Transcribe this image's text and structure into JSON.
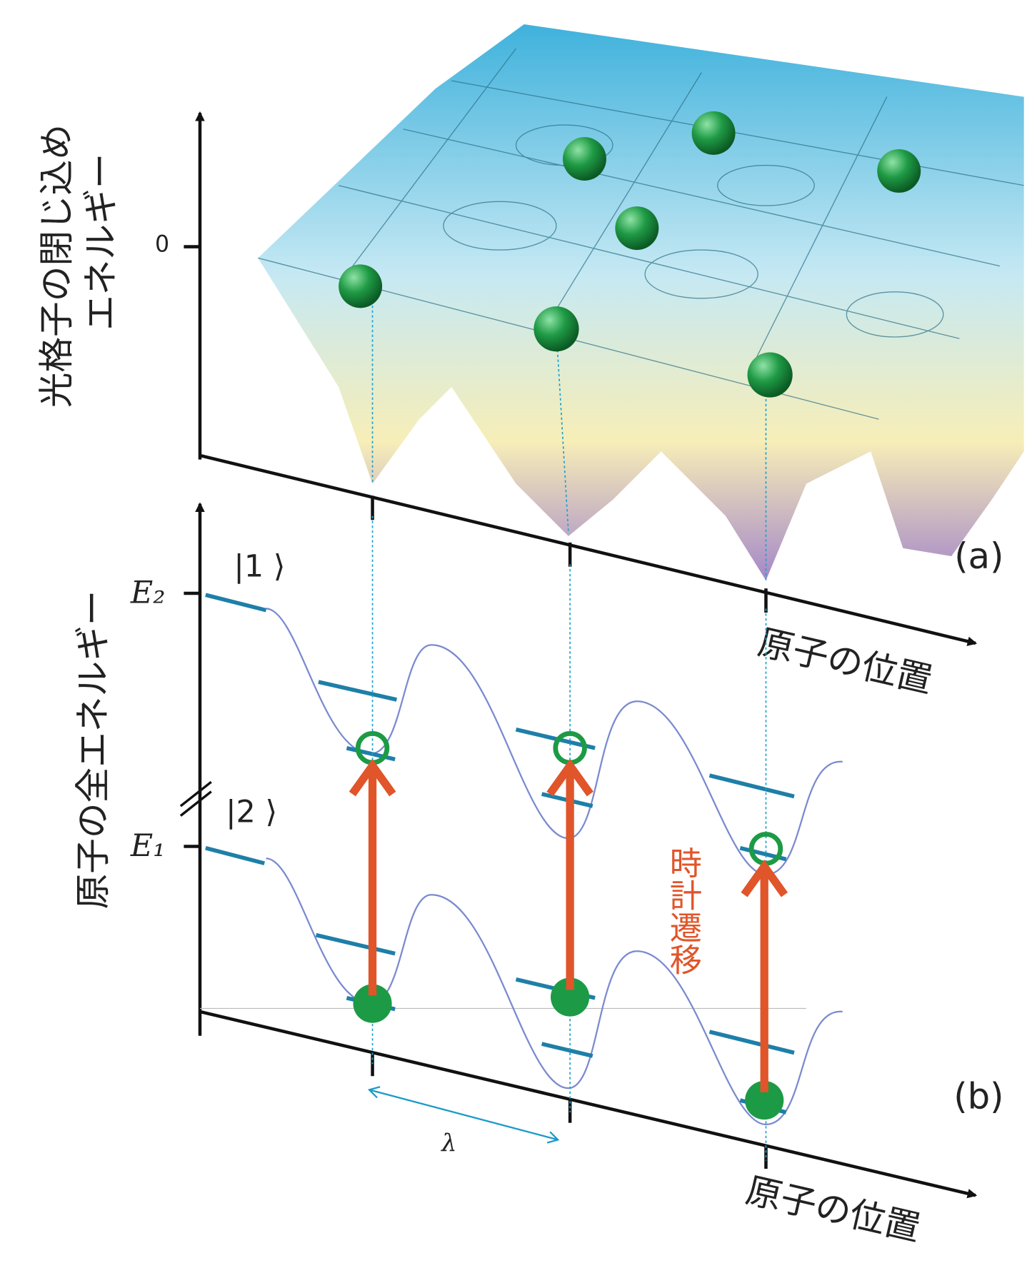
{
  "panel_a": {
    "y_label_lines": [
      "光格子の閉じ込め",
      "エネルギー"
    ],
    "zero_label": "0",
    "x_label": "原子の位置",
    "tag": "(a)"
  },
  "panel_b": {
    "y_label": "原子の全エネルギー",
    "e2_label": "E₂",
    "e1_label": "E₁",
    "state1_label": "|1 ⟩",
    "state2_label": "|2 ⟩",
    "transition_label": "時計遷移",
    "lambda_label": "λ",
    "x_label": "原子の位置",
    "tag": "(b)"
  }
}
